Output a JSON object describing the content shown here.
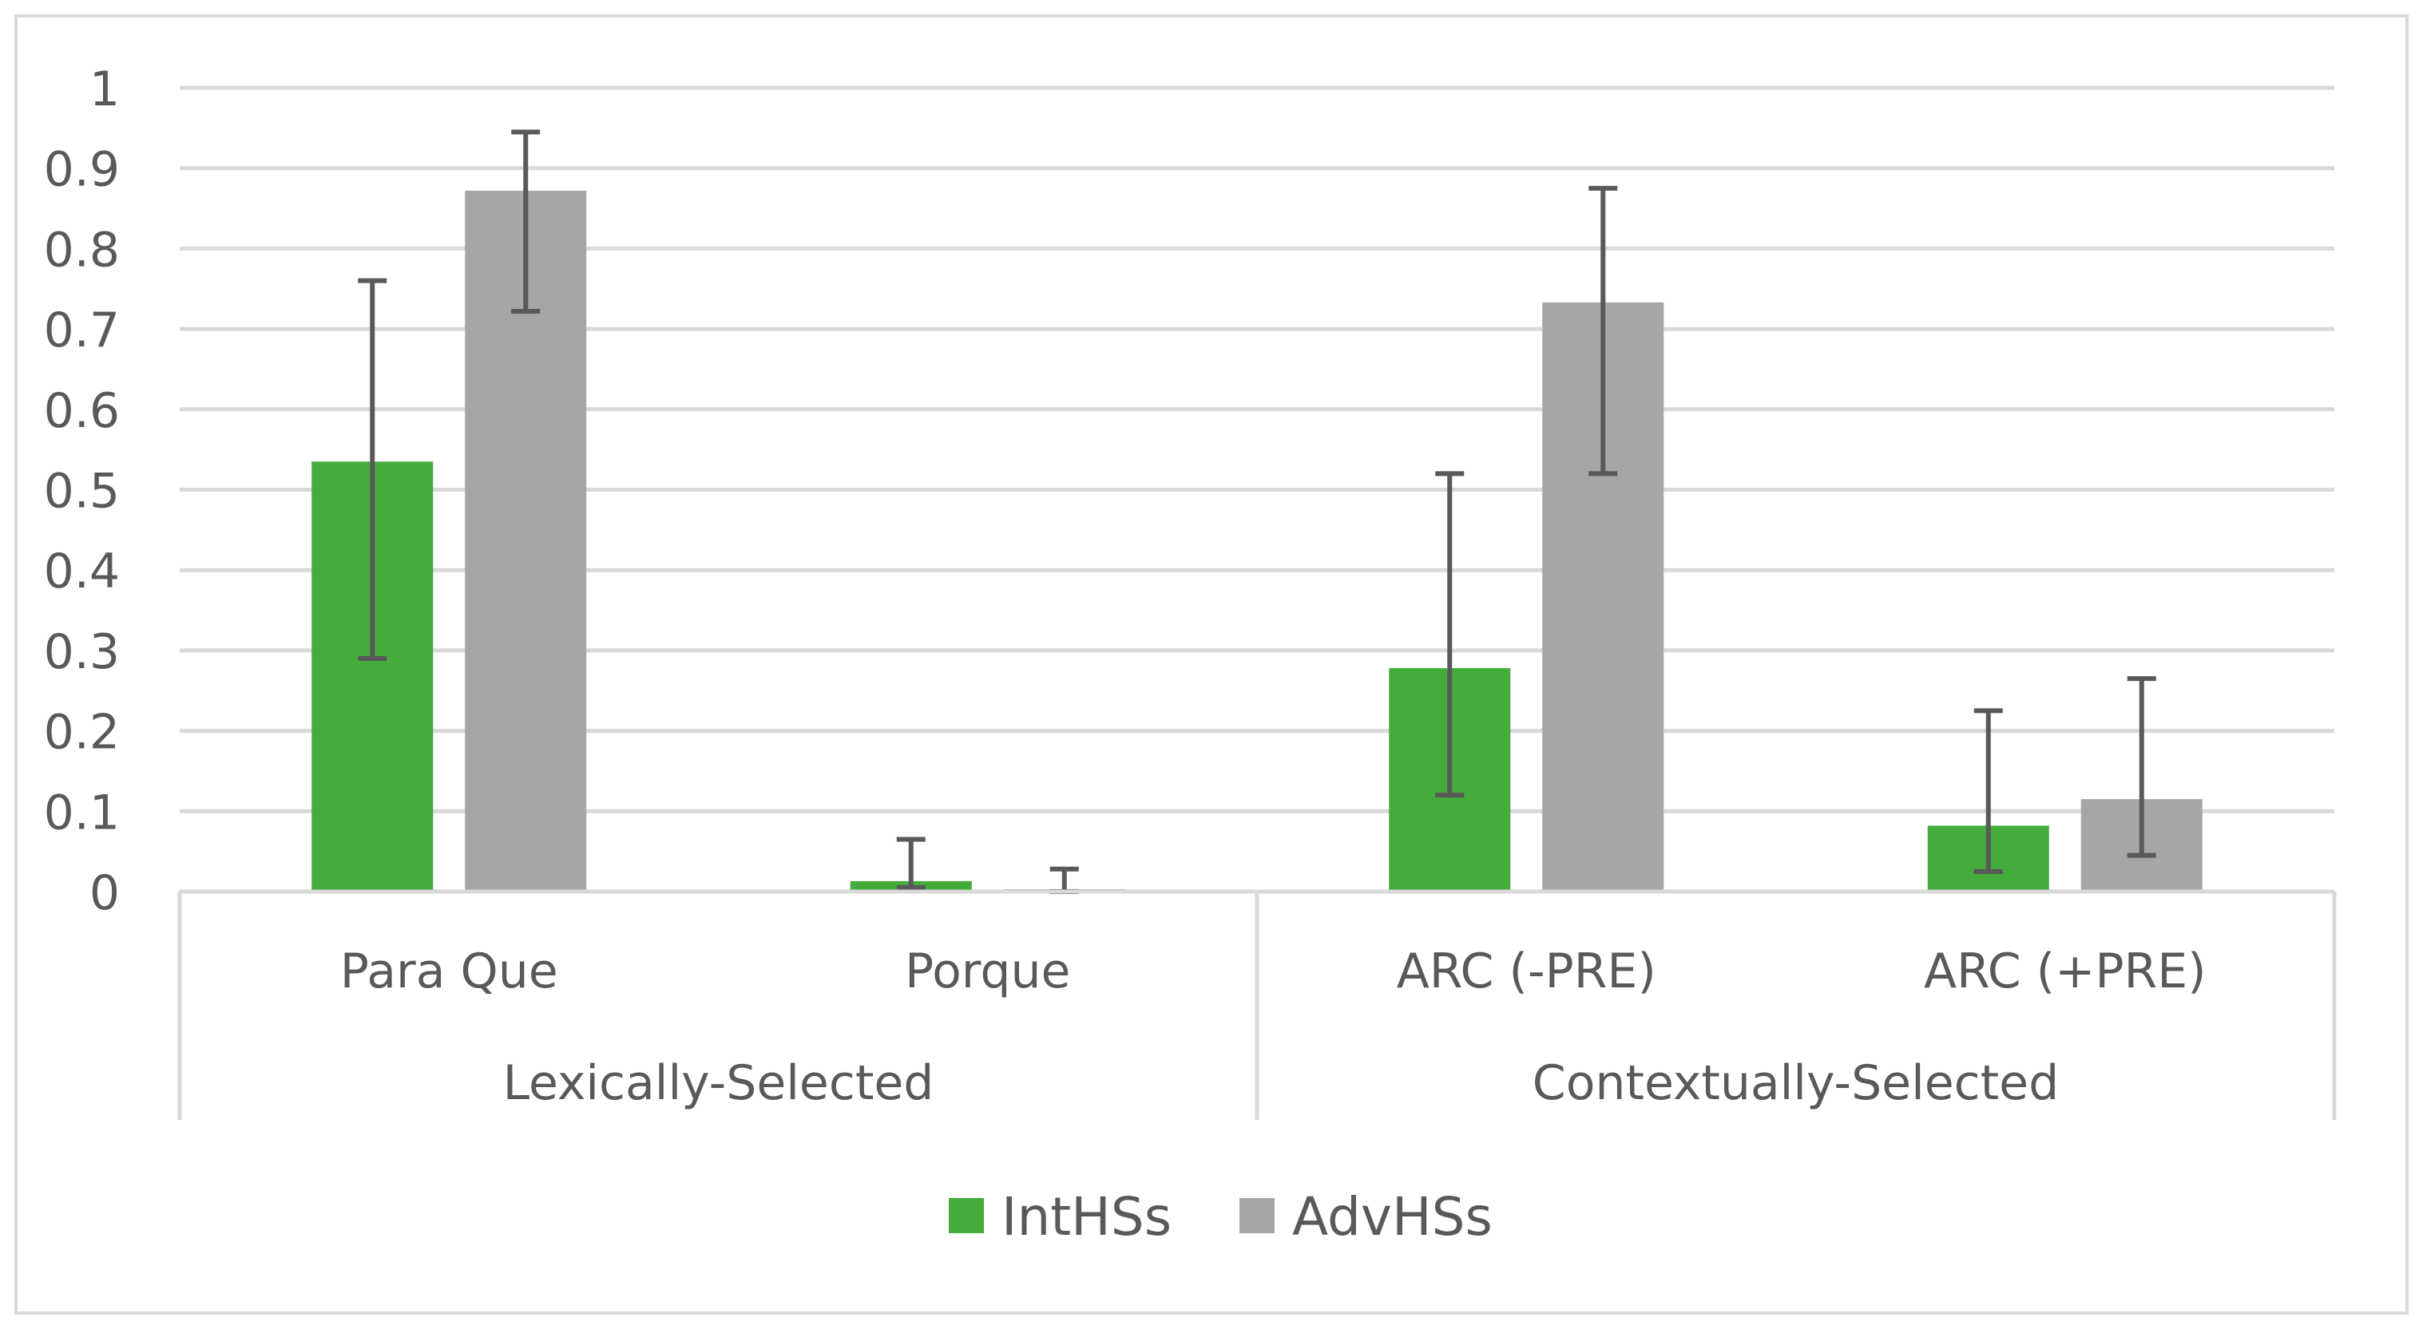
{
  "chart_data": {
    "type": "bar",
    "title": "",
    "xlabel": "",
    "ylabel": "",
    "ylim": [
      0,
      1
    ],
    "yticks": [
      "0",
      "0.1",
      "0.2",
      "0.3",
      "0.4",
      "0.5",
      "0.6",
      "0.7",
      "0.8",
      "0.9",
      "1"
    ],
    "grid": true,
    "legend_position": "bottom",
    "categories": [
      "Para Que",
      "Porque",
      "ARC (-PRE)",
      "ARC (+PRE)"
    ],
    "groups": [
      {
        "label": "Lexically-Selected",
        "categories": [
          "Para Que",
          "Porque"
        ]
      },
      {
        "label": "Contextually-Selected",
        "categories": [
          "ARC (-PRE)",
          "ARC (+PRE)"
        ]
      }
    ],
    "series": [
      {
        "name": "IntHSs",
        "color": "#43AC3B",
        "values": [
          0.535,
          0.013,
          0.278,
          0.082
        ],
        "error_low": [
          0.29,
          0.005,
          0.12,
          0.025
        ],
        "error_high": [
          0.76,
          0.065,
          0.52,
          0.225
        ]
      },
      {
        "name": "AdvHSs",
        "color": "#A6A6A6",
        "values": [
          0.872,
          0.003,
          0.733,
          0.115
        ],
        "error_low": [
          0.722,
          0.0,
          0.52,
          0.045
        ],
        "error_high": [
          0.945,
          0.028,
          0.875,
          0.265
        ]
      }
    ]
  }
}
